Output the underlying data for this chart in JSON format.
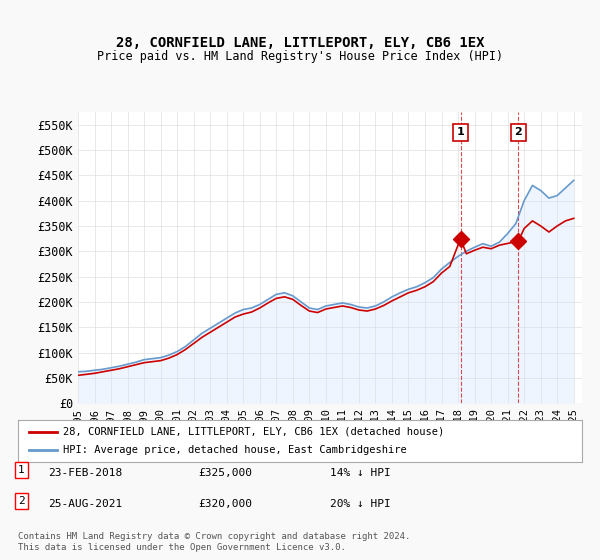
{
  "title": "28, CORNFIELD LANE, LITTLEPORT, ELY, CB6 1EX",
  "subtitle": "Price paid vs. HM Land Registry's House Price Index (HPI)",
  "ylabel_ticks": [
    "£0",
    "£50K",
    "£100K",
    "£150K",
    "£200K",
    "£250K",
    "£300K",
    "£350K",
    "£400K",
    "£450K",
    "£500K",
    "£550K"
  ],
  "ytick_values": [
    0,
    50000,
    100000,
    150000,
    200000,
    250000,
    300000,
    350000,
    400000,
    450000,
    500000,
    550000
  ],
  "ylim": [
    0,
    575000
  ],
  "background_color": "#f9f9f9",
  "plot_bg_color": "#ffffff",
  "grid_color": "#e0e0e0",
  "sale1": {
    "date_num": 2018.15,
    "price": 325000,
    "label": "1"
  },
  "sale2": {
    "date_num": 2021.65,
    "price": 320000,
    "label": "2"
  },
  "legend_house": "28, CORNFIELD LANE, LITTLEPORT, ELY, CB6 1EX (detached house)",
  "legend_hpi": "HPI: Average price, detached house, East Cambridgeshire",
  "annotation1": "1    23-FEB-2018        £325,000        14% ↓ HPI",
  "annotation2": "2    25-AUG-2021        £320,000        20% ↓ HPI",
  "footer": "Contains HM Land Registry data © Crown copyright and database right 2024.\nThis data is licensed under the Open Government Licence v3.0.",
  "house_color": "#cc0000",
  "hpi_color": "#6699cc",
  "hpi_fill_color": "#cce0ff",
  "hpi_years": [
    1995,
    1995.5,
    1996,
    1996.5,
    1997,
    1997.5,
    1998,
    1998.5,
    1999,
    1999.5,
    2000,
    2000.5,
    2001,
    2001.5,
    2002,
    2002.5,
    2003,
    2003.5,
    2004,
    2004.5,
    2005,
    2005.5,
    2006,
    2006.5,
    2007,
    2007.5,
    2008,
    2008.5,
    2009,
    2009.5,
    2010,
    2010.5,
    2011,
    2011.5,
    2012,
    2012.5,
    2013,
    2013.5,
    2014,
    2014.5,
    2015,
    2015.5,
    2016,
    2016.5,
    2017,
    2017.5,
    2018,
    2018.5,
    2019,
    2019.5,
    2020,
    2020.5,
    2021,
    2021.5,
    2022,
    2022.5,
    2023,
    2023.5,
    2024,
    2024.5,
    2025
  ],
  "hpi_values": [
    62000,
    63000,
    65000,
    67000,
    70000,
    73000,
    77000,
    81000,
    86000,
    88000,
    90000,
    95000,
    102000,
    112000,
    125000,
    138000,
    148000,
    158000,
    168000,
    178000,
    185000,
    188000,
    195000,
    205000,
    215000,
    218000,
    212000,
    200000,
    188000,
    185000,
    192000,
    195000,
    198000,
    195000,
    190000,
    188000,
    192000,
    200000,
    210000,
    218000,
    225000,
    230000,
    238000,
    248000,
    265000,
    278000,
    290000,
    300000,
    308000,
    315000,
    310000,
    318000,
    335000,
    355000,
    400000,
    430000,
    420000,
    405000,
    410000,
    425000,
    440000
  ],
  "house_years": [
    1995,
    1995.5,
    1996,
    1996.5,
    1997,
    1997.5,
    1998,
    1998.5,
    1999,
    1999.5,
    2000,
    2000.5,
    2001,
    2001.5,
    2002,
    2002.5,
    2003,
    2003.5,
    2004,
    2004.5,
    2005,
    2005.5,
    2006,
    2006.5,
    2007,
    2007.5,
    2008,
    2008.5,
    2009,
    2009.5,
    2010,
    2010.5,
    2011,
    2011.5,
    2012,
    2012.5,
    2013,
    2013.5,
    2014,
    2014.5,
    2015,
    2015.5,
    2016,
    2016.5,
    2017,
    2017.5,
    2018.15,
    2018.5,
    2019,
    2019.5,
    2020,
    2020.5,
    2021.65,
    2022,
    2022.5,
    2023,
    2023.5,
    2024,
    2024.5,
    2025
  ],
  "house_values": [
    55000,
    57000,
    59000,
    62000,
    65000,
    68000,
    72000,
    76000,
    80000,
    82000,
    84000,
    89000,
    96000,
    106000,
    118000,
    130000,
    140000,
    150000,
    160000,
    170000,
    176000,
    180000,
    188000,
    198000,
    207000,
    210000,
    205000,
    193000,
    182000,
    179000,
    186000,
    189000,
    192000,
    189000,
    184000,
    182000,
    186000,
    193000,
    202000,
    210000,
    218000,
    223000,
    230000,
    240000,
    257000,
    270000,
    325000,
    295000,
    302000,
    308000,
    305000,
    312000,
    320000,
    345000,
    360000,
    350000,
    338000,
    350000,
    360000,
    365000
  ]
}
